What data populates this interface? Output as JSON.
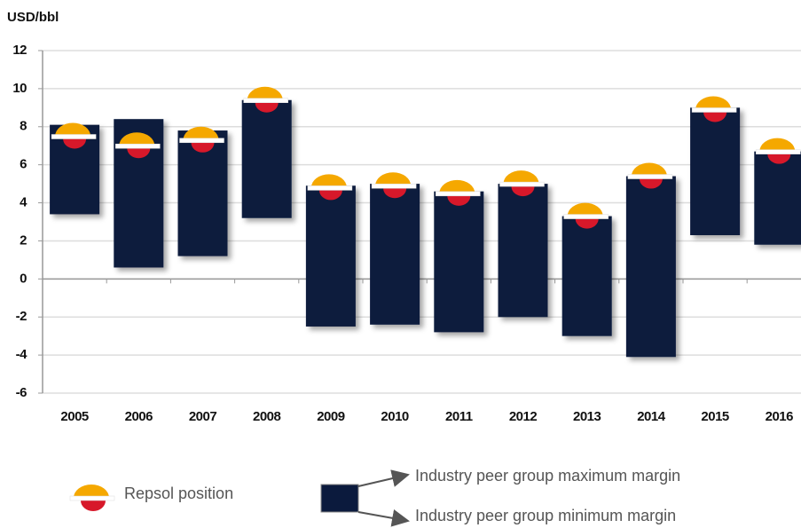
{
  "chart_data": {
    "type": "floating_bar",
    "y_label": "USD/bbl",
    "categories": [
      "2005",
      "2006",
      "2007",
      "2008",
      "2009",
      "2010",
      "2011",
      "2012",
      "2013",
      "2014",
      "2015",
      "2016"
    ],
    "series": [
      {
        "name": "Industry peer group maximum margin",
        "color": "#0b1a3d",
        "values": [
          8.1,
          8.4,
          7.8,
          9.4,
          4.9,
          5.0,
          4.6,
          5.0,
          3.3,
          5.4,
          9.0,
          6.7
        ]
      },
      {
        "name": "Industry peer group minimum margin",
        "color": "#0b1a3d",
        "values": [
          3.4,
          0.6,
          1.2,
          3.2,
          -2.5,
          -2.4,
          -2.8,
          -2.0,
          -3.0,
          -4.1,
          2.3,
          1.8
        ]
      },
      {
        "name": "Repsol position",
        "color": "#f5a800",
        "values": [
          7.5,
          7.0,
          7.3,
          9.4,
          4.8,
          4.9,
          4.5,
          5.0,
          3.3,
          5.4,
          8.9,
          6.7
        ]
      }
    ],
    "ylim": [
      -6,
      12
    ],
    "yticks": [
      -6,
      -4,
      -2,
      0,
      2,
      4,
      6,
      8,
      10,
      12
    ],
    "grid": true
  }
}
